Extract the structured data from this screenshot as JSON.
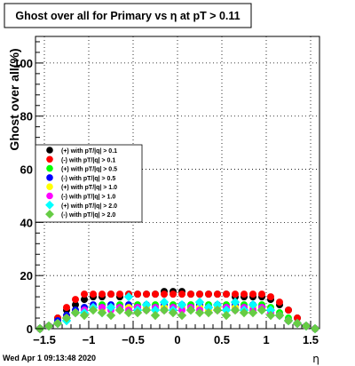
{
  "footer": {
    "timestamp": "Wed Apr  1 09:13:48 2020"
  },
  "chart_data": {
    "type": "scatter",
    "title": "Ghost over all for Primary vs   η at pT > 0.11",
    "xlabel": "η",
    "ylabel": "Ghost over all(%)",
    "xlim": [
      -1.6,
      1.6
    ],
    "ylim": [
      0,
      110
    ],
    "xticks": [
      -1.5,
      -1,
      -0.5,
      0,
      0.5,
      1,
      1.5
    ],
    "xtick_labels": [
      "−1.5",
      "−1",
      "−0.5",
      "0",
      "0.5",
      "1",
      "1.5"
    ],
    "yticks": [
      0,
      20,
      40,
      60,
      80,
      100
    ],
    "ytick_labels": [
      "0",
      "20",
      "40",
      "60",
      "80",
      "100"
    ],
    "grid": true,
    "legend_position": "left",
    "series": [
      {
        "name": "(+) with pT/|q| > 0.1",
        "color": "#000000",
        "marker": "circle",
        "x": [
          -1.55,
          -1.45,
          -1.35,
          -1.25,
          -1.15,
          -1.05,
          -0.95,
          -0.85,
          -0.75,
          -0.65,
          -0.55,
          -0.45,
          -0.35,
          -0.25,
          -0.15,
          -0.05,
          0.05,
          0.15,
          0.25,
          0.35,
          0.45,
          0.55,
          0.65,
          0.75,
          0.85,
          0.95,
          1.05,
          1.15,
          1.25,
          1.35,
          1.45,
          1.55
        ],
        "y": [
          0,
          1,
          4,
          7,
          9,
          11,
          12,
          12,
          13,
          12,
          13,
          13,
          13,
          13,
          14,
          14,
          14,
          13,
          13,
          13,
          13,
          13,
          12,
          12,
          12,
          12,
          11,
          9,
          7,
          4,
          1,
          0
        ]
      },
      {
        "name": "(-) with pT/|q| > 0.1",
        "color": "#ff0000",
        "marker": "circle",
        "x": [
          -1.55,
          -1.45,
          -1.35,
          -1.25,
          -1.15,
          -1.05,
          -0.95,
          -0.85,
          -0.75,
          -0.65,
          -0.55,
          -0.45,
          -0.35,
          -0.25,
          -0.15,
          -0.05,
          0.05,
          0.15,
          0.25,
          0.35,
          0.45,
          0.55,
          0.65,
          0.75,
          0.85,
          0.95,
          1.05,
          1.15,
          1.25,
          1.35,
          1.45,
          1.55
        ],
        "y": [
          0,
          1,
          4,
          8,
          11,
          13,
          13,
          13,
          13,
          13,
          13,
          13,
          13,
          13,
          13,
          13,
          13,
          13,
          13,
          13,
          13,
          13,
          13,
          13,
          13,
          13,
          12,
          10,
          7,
          4,
          1,
          0
        ]
      },
      {
        "name": "(+) with pT/|q| > 0.5",
        "color": "#00ff00",
        "marker": "circle",
        "x": [
          -1.55,
          -1.45,
          -1.35,
          -1.25,
          -1.15,
          -1.05,
          -0.95,
          -0.85,
          -0.75,
          -0.65,
          -0.55,
          -0.45,
          -0.35,
          -0.25,
          -0.15,
          -0.05,
          0.05,
          0.15,
          0.25,
          0.35,
          0.45,
          0.55,
          0.65,
          0.75,
          0.85,
          0.95,
          1.05,
          1.15,
          1.25,
          1.35,
          1.45,
          1.55
        ],
        "y": [
          0,
          1,
          3,
          5,
          7,
          8,
          8,
          9,
          8,
          9,
          8,
          9,
          8,
          9,
          8,
          9,
          8,
          9,
          8,
          9,
          8,
          9,
          8,
          9,
          8,
          9,
          8,
          6,
          4,
          2,
          1,
          0
        ]
      },
      {
        "name": "(-) with pT/|q| > 0.5",
        "color": "#0000ff",
        "marker": "circle",
        "x": [
          -1.55,
          -1.45,
          -1.35,
          -1.25,
          -1.15,
          -1.05,
          -0.95,
          -0.85,
          -0.75,
          -0.65,
          -0.55,
          -0.45,
          -0.35,
          -0.25,
          -0.15,
          -0.05,
          0.05,
          0.15,
          0.25,
          0.35,
          0.45,
          0.55,
          0.65,
          0.75,
          0.85,
          0.95,
          1.05,
          1.15,
          1.25,
          1.35,
          1.45,
          1.55
        ],
        "y": [
          0,
          1,
          3,
          5,
          7,
          8,
          9,
          8,
          9,
          8,
          9,
          8,
          9,
          8,
          9,
          8,
          9,
          8,
          9,
          8,
          9,
          8,
          9,
          8,
          9,
          8,
          7,
          5,
          3,
          2,
          1,
          0
        ]
      },
      {
        "name": "(+) with pT/|q| > 1.0",
        "color": "#ffff00",
        "marker": "circle",
        "x": [
          -1.55,
          -1.45,
          -1.35,
          -1.25,
          -1.15,
          -1.05,
          -0.95,
          -0.85,
          -0.75,
          -0.65,
          -0.55,
          -0.45,
          -0.35,
          -0.25,
          -0.15,
          -0.05,
          0.05,
          0.15,
          0.25,
          0.35,
          0.45,
          0.55,
          0.65,
          0.75,
          0.85,
          0.95,
          1.05,
          1.15,
          1.25,
          1.35,
          1.45,
          1.55
        ],
        "y": [
          0,
          1,
          2,
          4,
          6,
          7,
          8,
          7,
          8,
          7,
          8,
          7,
          8,
          7,
          8,
          7,
          8,
          7,
          8,
          7,
          8,
          7,
          8,
          7,
          8,
          7,
          7,
          5,
          3,
          2,
          1,
          0
        ]
      },
      {
        "name": "(-) with pT/|q| > 1.0",
        "color": "#ff00ff",
        "marker": "circle",
        "x": [
          -1.55,
          -1.45,
          -1.35,
          -1.25,
          -1.15,
          -1.05,
          -0.95,
          -0.85,
          -0.75,
          -0.65,
          -0.55,
          -0.45,
          -0.35,
          -0.25,
          -0.15,
          -0.05,
          0.05,
          0.15,
          0.25,
          0.35,
          0.45,
          0.55,
          0.65,
          0.75,
          0.85,
          0.95,
          1.05,
          1.15,
          1.25,
          1.35,
          1.45,
          1.55
        ],
        "y": [
          0,
          1,
          2,
          4,
          6,
          7,
          8,
          8,
          7,
          8,
          7,
          8,
          7,
          8,
          7,
          8,
          7,
          8,
          7,
          8,
          7,
          8,
          7,
          8,
          7,
          8,
          6,
          5,
          3,
          2,
          1,
          0
        ]
      },
      {
        "name": "(+) with pT/|q| > 2.0",
        "color": "#00ffff",
        "marker": "diamond",
        "x": [
          -1.55,
          -1.45,
          -1.35,
          -1.25,
          -1.15,
          -1.05,
          -0.95,
          -0.85,
          -0.75,
          -0.65,
          -0.55,
          -0.45,
          -0.35,
          -0.25,
          -0.15,
          -0.05,
          0.05,
          0.15,
          0.25,
          0.35,
          0.45,
          0.55,
          0.65,
          0.75,
          0.85,
          0.95,
          1.05,
          1.15,
          1.25,
          1.35,
          1.45,
          1.55
        ],
        "y": [
          0,
          1,
          2,
          3,
          6,
          6,
          8,
          6,
          8,
          7,
          12,
          7,
          9,
          7,
          10,
          7,
          9,
          7,
          10,
          8,
          9,
          7,
          10,
          7,
          9,
          7,
          7,
          5,
          3,
          2,
          1,
          0
        ]
      },
      {
        "name": "(-) with pT/|q| > 2.0",
        "color": "#66cc44",
        "marker": "diamond",
        "x": [
          -1.55,
          -1.45,
          -1.35,
          -1.25,
          -1.15,
          -1.05,
          -0.95,
          -0.85,
          -0.75,
          -0.65,
          -0.55,
          -0.45,
          -0.35,
          -0.25,
          -0.15,
          -0.05,
          0.05,
          0.15,
          0.25,
          0.35,
          0.45,
          0.55,
          0.65,
          0.75,
          0.85,
          0.95,
          1.05,
          1.15,
          1.25,
          1.35,
          1.45,
          1.55
        ],
        "y": [
          0,
          1,
          2,
          4,
          6,
          5,
          7,
          6,
          5,
          7,
          6,
          6,
          7,
          5,
          7,
          6,
          5,
          7,
          6,
          6,
          7,
          5,
          7,
          6,
          6,
          7,
          5,
          5,
          3,
          2,
          1,
          0
        ]
      }
    ]
  }
}
